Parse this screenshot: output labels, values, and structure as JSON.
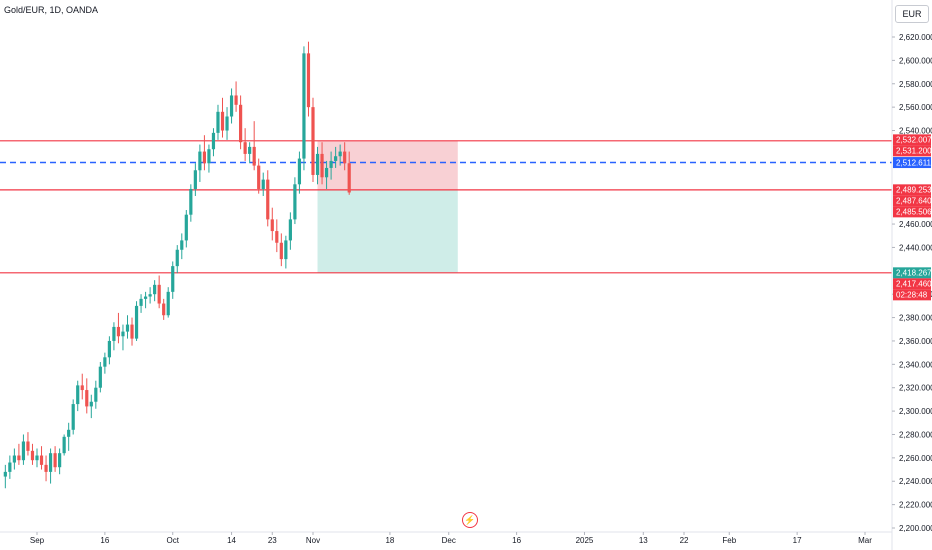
{
  "header": {
    "title": "Gold/EUR, 1D, OANDA",
    "currency": "EUR"
  },
  "colors": {
    "up": "#26a69a",
    "down": "#ef5350",
    "level_line": "#f23645",
    "current_price": "#2962ff",
    "stop_zone": "#f8d0d4",
    "target_zone": "#cfede8",
    "tag_red": "#f23645",
    "tag_green": "#26a69a",
    "tag_blue": "#2962ff"
  },
  "icons": {
    "events": "flash-icon"
  },
  "chart_data": {
    "type": "candlestick",
    "title": "Gold/EUR, 1D, OANDA",
    "ylim": [
      2200,
      2640
    ],
    "y_ticks": [
      "2,620.000",
      "2,600.000",
      "2,580.000",
      "2,560.000",
      "2,540.000",
      "2,460.000",
      "2,440.000",
      "2,400.000",
      "2,380.000",
      "2,360.000",
      "2,340.000",
      "2,320.000",
      "2,300.000",
      "2,280.000",
      "2,260.000",
      "2,240.000",
      "2,220.000",
      "2,200.000"
    ],
    "y_tick_values": [
      2620,
      2600,
      2580,
      2560,
      2540,
      2460,
      2440,
      2400,
      2380,
      2360,
      2340,
      2320,
      2300,
      2280,
      2260,
      2240,
      2220,
      2200
    ],
    "x_ticks": [
      "Sep",
      "16",
      "Oct",
      "14",
      "23",
      "Nov",
      "18",
      "Dec",
      "16",
      "2025",
      "13",
      "22",
      "Feb",
      "17",
      "Mar"
    ],
    "x_tick_days": [
      0,
      15,
      30,
      43,
      52,
      61,
      78,
      91,
      106,
      121,
      134,
      143,
      153,
      168,
      183
    ],
    "day_start": 0,
    "candles": [
      [
        -7,
        2244,
        2254,
        2234,
        2248
      ],
      [
        -6,
        2248,
        2262,
        2242,
        2256
      ],
      [
        -5,
        2256,
        2268,
        2250,
        2262
      ],
      [
        -4,
        2262,
        2272,
        2254,
        2258
      ],
      [
        -3,
        2258,
        2280,
        2254,
        2274
      ],
      [
        -2,
        2274,
        2282,
        2262,
        2266
      ],
      [
        -1,
        2266,
        2272,
        2254,
        2258
      ],
      [
        0,
        2258,
        2268,
        2252,
        2262
      ],
      [
        1,
        2262,
        2270,
        2250,
        2254
      ],
      [
        2,
        2254,
        2262,
        2240,
        2248
      ],
      [
        3,
        2248,
        2268,
        2238,
        2264
      ],
      [
        4,
        2264,
        2270,
        2248,
        2252
      ],
      [
        5,
        2252,
        2268,
        2246,
        2264
      ],
      [
        6,
        2264,
        2280,
        2262,
        2278
      ],
      [
        7,
        2278,
        2290,
        2266,
        2284
      ],
      [
        8,
        2284,
        2310,
        2280,
        2306
      ],
      [
        9,
        2306,
        2326,
        2300,
        2322
      ],
      [
        10,
        2322,
        2332,
        2310,
        2318
      ],
      [
        11,
        2318,
        2328,
        2298,
        2304
      ],
      [
        12,
        2304,
        2314,
        2294,
        2308
      ],
      [
        13,
        2308,
        2326,
        2302,
        2320
      ],
      [
        14,
        2320,
        2342,
        2316,
        2338
      ],
      [
        15,
        2338,
        2350,
        2332,
        2346
      ],
      [
        16,
        2346,
        2364,
        2340,
        2360
      ],
      [
        17,
        2360,
        2376,
        2352,
        2372
      ],
      [
        18,
        2372,
        2384,
        2358,
        2364
      ],
      [
        19,
        2364,
        2374,
        2352,
        2368
      ],
      [
        20,
        2368,
        2382,
        2362,
        2374
      ],
      [
        21,
        2374,
        2380,
        2356,
        2362
      ],
      [
        22,
        2362,
        2394,
        2360,
        2390
      ],
      [
        23,
        2390,
        2400,
        2384,
        2396
      ],
      [
        24,
        2396,
        2402,
        2388,
        2398
      ],
      [
        25,
        2398,
        2406,
        2392,
        2400
      ],
      [
        26,
        2400,
        2412,
        2394,
        2408
      ],
      [
        27,
        2408,
        2416,
        2388,
        2392
      ],
      [
        28,
        2392,
        2396,
        2378,
        2382
      ],
      [
        29,
        2382,
        2406,
        2380,
        2402
      ],
      [
        30,
        2402,
        2428,
        2396,
        2424
      ],
      [
        31,
        2424,
        2442,
        2418,
        2438
      ],
      [
        32,
        2438,
        2452,
        2430,
        2446
      ],
      [
        33,
        2446,
        2472,
        2440,
        2468
      ],
      [
        34,
        2468,
        2494,
        2462,
        2490
      ],
      [
        35,
        2490,
        2512,
        2484,
        2506
      ],
      [
        36,
        2506,
        2528,
        2496,
        2522
      ],
      [
        37,
        2522,
        2536,
        2506,
        2512
      ],
      [
        38,
        2512,
        2528,
        2504,
        2524
      ],
      [
        39,
        2524,
        2542,
        2518,
        2538
      ],
      [
        40,
        2538,
        2562,
        2532,
        2556
      ],
      [
        41,
        2556,
        2568,
        2534,
        2540
      ],
      [
        42,
        2540,
        2560,
        2532,
        2552
      ],
      [
        43,
        2552,
        2576,
        2546,
        2570
      ],
      [
        44,
        2570,
        2582,
        2556,
        2562
      ],
      [
        45,
        2562,
        2570,
        2524,
        2530
      ],
      [
        46,
        2530,
        2542,
        2514,
        2520
      ],
      [
        47,
        2520,
        2530,
        2512,
        2526
      ],
      [
        48,
        2526,
        2548,
        2506,
        2510
      ],
      [
        49,
        2510,
        2516,
        2486,
        2490
      ],
      [
        50,
        2490,
        2504,
        2484,
        2498
      ],
      [
        51,
        2498,
        2506,
        2458,
        2464
      ],
      [
        52,
        2464,
        2474,
        2446,
        2454
      ],
      [
        53,
        2454,
        2464,
        2436,
        2444
      ],
      [
        54,
        2444,
        2452,
        2424,
        2430
      ],
      [
        55,
        2430,
        2450,
        2422,
        2446
      ],
      [
        56,
        2446,
        2470,
        2438,
        2464
      ],
      [
        57,
        2464,
        2500,
        2460,
        2494
      ],
      [
        58,
        2494,
        2522,
        2486,
        2516
      ],
      [
        59,
        2516,
        2612,
        2506,
        2606
      ],
      [
        60,
        2606,
        2616,
        2552,
        2560
      ],
      [
        61,
        2560,
        2568,
        2496,
        2502
      ],
      [
        62,
        2502,
        2526,
        2494,
        2520
      ],
      [
        63,
        2520,
        2530,
        2494,
        2500
      ],
      [
        64,
        2500,
        2514,
        2490,
        2508
      ],
      [
        65,
        2508,
        2522,
        2498,
        2514
      ],
      [
        66,
        2514,
        2526,
        2508,
        2518
      ],
      [
        67,
        2518,
        2528,
        2510,
        2522
      ],
      [
        68,
        2522,
        2530,
        2506,
        2512
      ],
      [
        69,
        2512,
        2522,
        2485,
        2487
      ]
    ],
    "horizontal_levels": [
      2531.2,
      2489.253,
      2418.267
    ],
    "current_price": 2512.611,
    "position": {
      "entry": 2489.253,
      "stop": 2531.2,
      "target": 2418.267,
      "start_day": 62,
      "end_day": 93
    },
    "price_tags": [
      {
        "value": 2532.007,
        "text": "2,532.007",
        "color": "red"
      },
      {
        "value": 2531.2,
        "text": "2,531.200",
        "color": "red"
      },
      {
        "value": 2512.611,
        "text": "2,512.611",
        "color": "blue"
      },
      {
        "value": 2489.253,
        "text": "2,489.253",
        "color": "red"
      },
      {
        "value": 2487.64,
        "text": "2,487.640",
        "color": "red"
      },
      {
        "value": 2485.506,
        "text": "2,485.506",
        "color": "red"
      },
      {
        "value": 2418.267,
        "text": "2,418.267",
        "color": "green"
      },
      {
        "value": 2417.46,
        "text": "2,417.460",
        "color": "red"
      }
    ],
    "countdown": "02:28:48"
  }
}
